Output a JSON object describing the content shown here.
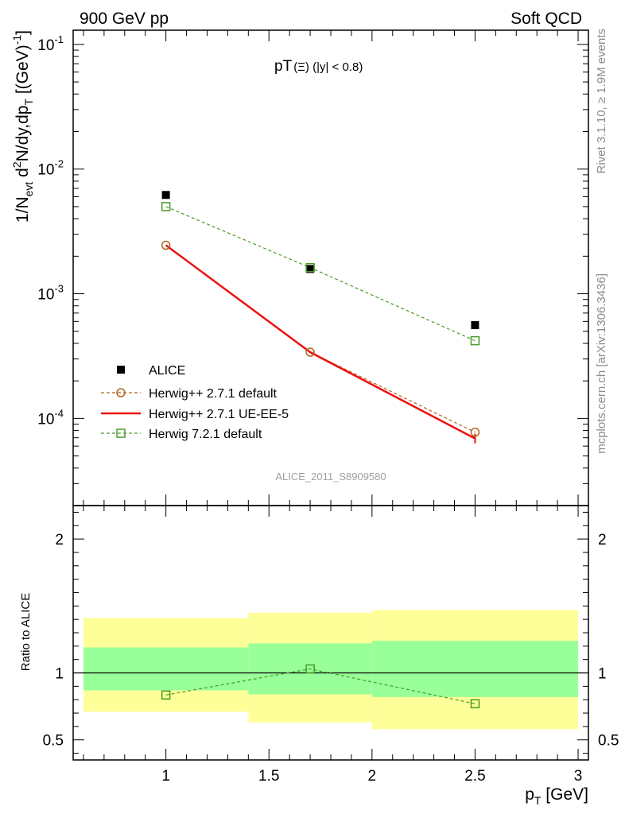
{
  "header": {
    "left": "900 GeV pp",
    "right": "Soft QCD"
  },
  "side_text": {
    "rivet": "Rivet 3.1.10, ≥ 1.9M events",
    "mcplots": "mcplots.cern.ch [arXiv:1306.3436]"
  },
  "chart_data": [
    {
      "type": "scatter",
      "panel": "main",
      "title": {
        "main": "pT",
        "sub": "(Ξ) (|y| < 0.8)"
      },
      "watermark": "ALICE_2011_S8909580",
      "ylabel": {
        "base": "1/N",
        "sub1": "evt",
        "mid1": " d",
        "sup1": "2",
        "mid2": "N/dy,dp",
        "sub2": "T",
        "mid3": " [(GeV)",
        "sup2": "-1",
        "end": "]"
      },
      "yscale": "log",
      "xlim": [
        0.55,
        3.05
      ],
      "ylim": [
        2e-05,
        0.13
      ],
      "yticks": [
        {
          "value": 0.1,
          "base": "10",
          "exp": "-1"
        },
        {
          "value": 0.01,
          "base": "10",
          "exp": "-2"
        },
        {
          "value": 0.001,
          "base": "10",
          "exp": "-3"
        },
        {
          "value": 0.0001,
          "base": "10",
          "exp": "-4"
        }
      ],
      "legend_position": "bottom-left",
      "series": [
        {
          "name": "ALICE",
          "style": "data",
          "color": "#000000",
          "x": [
            1.0,
            1.7,
            2.5
          ],
          "y": [
            0.0062,
            0.00158,
            0.00056
          ]
        },
        {
          "name": "Herwig++ 2.7.1 default",
          "style": "circle-dashed",
          "color": "#b5651d",
          "x": [
            1.0,
            1.7,
            2.5
          ],
          "y": [
            0.00245,
            0.00034,
            7.75e-05
          ]
        },
        {
          "name": "Herwig++ 2.7.1 UE-EE-5",
          "style": "solid",
          "color": "#ee1111",
          "x": [
            1.0,
            1.7,
            2.5
          ],
          "y": [
            0.00245,
            0.00034,
            6.9e-05
          ]
        },
        {
          "name": "Herwig 7.2.1 default",
          "style": "square-dashed",
          "color": "#4a9a2a",
          "x": [
            1.0,
            1.7,
            2.5
          ],
          "y": [
            0.005,
            0.00162,
            0.00042
          ]
        }
      ]
    },
    {
      "type": "line",
      "panel": "ratio",
      "ylabel": "Ratio to ALICE",
      "xlabel": {
        "base": "p",
        "sub": "T",
        "unit": " [GeV]"
      },
      "xlim": [
        0.55,
        3.05
      ],
      "ylim": [
        0.35,
        2.25
      ],
      "xticks": [
        {
          "value": 1,
          "label": "1"
        },
        {
          "value": 1.5,
          "label": "1.5"
        },
        {
          "value": 2,
          "label": "2"
        },
        {
          "value": 2.5,
          "label": "2.5"
        },
        {
          "value": 3,
          "label": "3"
        }
      ],
      "yticks": [
        {
          "value": 0.5,
          "label": "0.5"
        },
        {
          "value": 1,
          "label": "1"
        },
        {
          "value": 2,
          "label": "2"
        }
      ],
      "bands": [
        {
          "x0": 0.6,
          "x1": 1.4,
          "yellow": [
            0.71,
            1.41
          ],
          "green": [
            0.87,
            1.19
          ]
        },
        {
          "x0": 1.4,
          "x1": 2.0,
          "yellow": [
            0.63,
            1.45
          ],
          "green": [
            0.84,
            1.22
          ]
        },
        {
          "x0": 2.0,
          "x1": 3.0,
          "yellow": [
            0.58,
            1.47
          ],
          "green": [
            0.82,
            1.24
          ]
        }
      ],
      "band_colors": {
        "yellow": "#ffff99",
        "green": "#99ff99"
      },
      "series": [
        {
          "name": "Herwig 7.2.1 default",
          "color": "#4a9a2a",
          "x": [
            1.0,
            1.7,
            2.5
          ],
          "y": [
            0.835,
            1.03,
            0.77
          ]
        }
      ]
    }
  ]
}
